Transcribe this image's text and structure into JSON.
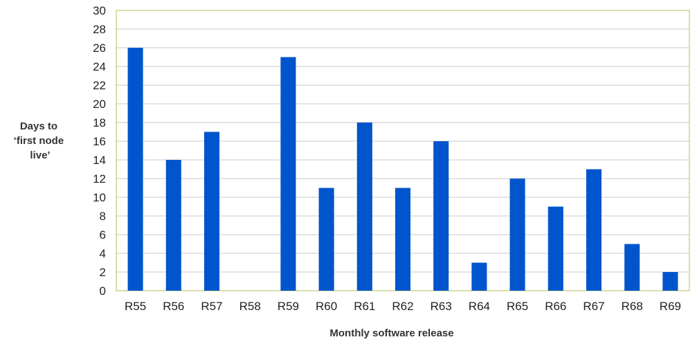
{
  "chart_data": {
    "type": "bar",
    "title": "",
    "xlabel": "Monthly software release",
    "ylabel_lines": [
      "Days to",
      "‘first node",
      "live’"
    ],
    "categories": [
      "R55",
      "R56",
      "R57",
      "R58",
      "R59",
      "R60",
      "R61",
      "R62",
      "R63",
      "R64",
      "R65",
      "R66",
      "R67",
      "R68",
      "R69"
    ],
    "values": [
      26,
      14,
      17,
      0,
      25,
      11,
      18,
      11,
      16,
      3,
      12,
      9,
      13,
      5,
      2
    ],
    "ylim": [
      0,
      30
    ],
    "ytick_step": 2,
    "grid": true,
    "legend": "none",
    "colors": {
      "bar": "#0055cc",
      "grid": "#c8c8c8",
      "plot_border": "#b3bf5a",
      "axis": "#888888"
    }
  }
}
